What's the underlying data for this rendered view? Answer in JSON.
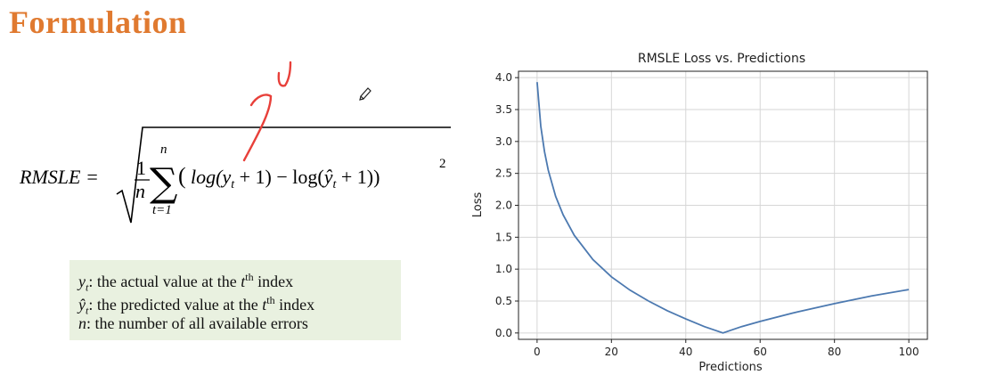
{
  "slide": {
    "title": "Formulation"
  },
  "formula": {
    "lhs": "RMSLE =",
    "frac_num": "1",
    "frac_den": "n",
    "sum_upper": "n",
    "sum_lower": "t=1",
    "open_paren": "(",
    "term1": "log(y",
    "term1_sub": "t",
    "term1_tail": " + 1) − log(",
    "term2": "ŷ",
    "term2_sub": "t",
    "term2_tail": " + 1))",
    "exponent": "2"
  },
  "legend": {
    "items": [
      {
        "var": "y",
        "sub": "t",
        "text": ": the actual value at the ",
        "sup_var": "t",
        "sup": "th",
        "tail": " index"
      },
      {
        "var": "ŷ",
        "sub": "t",
        "text": ": the predicted value at the ",
        "sup_var": "t",
        "sup": "th",
        "tail": " index"
      },
      {
        "var": "n",
        "sub": "",
        "text": ": the number of all available errors",
        "sup_var": "",
        "sup": "",
        "tail": ""
      }
    ]
  },
  "annotation": {
    "ink_color": "#e8403a"
  },
  "chart_data": {
    "type": "line",
    "title": "RMSLE Loss vs. Predictions",
    "xlabel": "Predictions",
    "ylabel": "Loss",
    "xlim": [
      -5,
      105
    ],
    "ylim": [
      -0.1,
      4.1
    ],
    "xticks": [
      0,
      20,
      40,
      60,
      80,
      100
    ],
    "yticks": [
      0.0,
      0.5,
      1.0,
      1.5,
      2.0,
      2.5,
      3.0,
      3.5,
      4.0
    ],
    "ytick_labels": [
      "0.0",
      "0.5",
      "1.0",
      "1.5",
      "2.0",
      "2.5",
      "3.0",
      "3.5",
      "4.0"
    ],
    "grid": true,
    "line_color": "#4c79b0",
    "series": [
      {
        "x": [
          0,
          1,
          2,
          3,
          5,
          7,
          10,
          15,
          20,
          25,
          30,
          35,
          40,
          45,
          50,
          55,
          60,
          70,
          80,
          90,
          100
        ],
        "y": [
          3.93,
          3.24,
          2.84,
          2.55,
          2.14,
          1.85,
          1.53,
          1.15,
          0.88,
          0.67,
          0.5,
          0.35,
          0.22,
          0.1,
          0.0,
          0.1,
          0.18,
          0.33,
          0.46,
          0.58,
          0.68
        ]
      }
    ]
  }
}
